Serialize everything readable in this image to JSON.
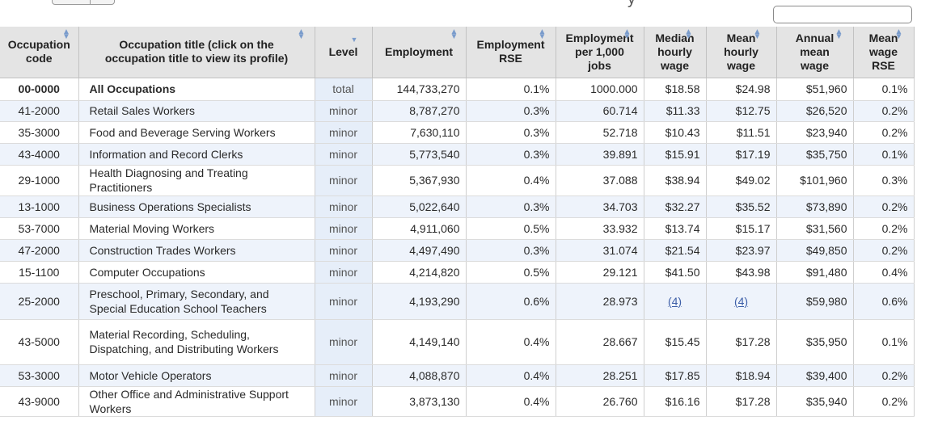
{
  "search": {
    "placeholder": "",
    "value": ""
  },
  "table": {
    "columns": [
      {
        "key": "code",
        "lines": [
          "Occupation",
          "code"
        ],
        "sort": "both"
      },
      {
        "key": "title",
        "lines": [
          "Occupation title (click on the",
          "occupation title to view its profile)"
        ],
        "sort": "both"
      },
      {
        "key": "level",
        "lines": [
          "Level"
        ],
        "sort": "down"
      },
      {
        "key": "employment",
        "lines": [
          "Employment"
        ],
        "sort": "both"
      },
      {
        "key": "employment_rse",
        "lines": [
          "Employment",
          "RSE"
        ],
        "sort": "both"
      },
      {
        "key": "per_1000",
        "lines": [
          "Employment",
          "per 1,000",
          "jobs"
        ],
        "sort": "both"
      },
      {
        "key": "median_hourly",
        "lines": [
          "Median",
          "hourly",
          "wage"
        ],
        "sort": "both"
      },
      {
        "key": "mean_hourly",
        "lines": [
          "Mean",
          "hourly",
          "wage"
        ],
        "sort": "both"
      },
      {
        "key": "annual_mean",
        "lines": [
          "Annual",
          "mean",
          "wage"
        ],
        "sort": "both"
      },
      {
        "key": "mean_rse",
        "lines": [
          "Mean",
          "wage",
          "RSE"
        ],
        "sort": "both"
      }
    ],
    "rows": [
      {
        "code": "00-0000",
        "title": "All Occupations",
        "level": "total",
        "employment": "144,733,270",
        "employment_rse": "0.1%",
        "per_1000": "1000.000",
        "median_hourly": "$18.58",
        "mean_hourly": "$24.98",
        "annual_mean": "$51,960",
        "mean_rse": "0.1%",
        "bold": true
      },
      {
        "code": "41-2000",
        "title": "Retail Sales Workers",
        "level": "minor",
        "employment": "8,787,270",
        "employment_rse": "0.3%",
        "per_1000": "60.714",
        "median_hourly": "$11.33",
        "mean_hourly": "$12.75",
        "annual_mean": "$26,520",
        "mean_rse": "0.2%"
      },
      {
        "code": "35-3000",
        "title": "Food and Beverage Serving Workers",
        "level": "minor",
        "employment": "7,630,110",
        "employment_rse": "0.3%",
        "per_1000": "52.718",
        "median_hourly": "$10.43",
        "mean_hourly": "$11.51",
        "annual_mean": "$23,940",
        "mean_rse": "0.2%"
      },
      {
        "code": "43-4000",
        "title": "Information and Record Clerks",
        "level": "minor",
        "employment": "5,773,540",
        "employment_rse": "0.3%",
        "per_1000": "39.891",
        "median_hourly": "$15.91",
        "mean_hourly": "$17.19",
        "annual_mean": "$35,750",
        "mean_rse": "0.1%"
      },
      {
        "code": "29-1000",
        "title": "Health Diagnosing and Treating Practitioners",
        "level": "minor",
        "employment": "5,367,930",
        "employment_rse": "0.4%",
        "per_1000": "37.088",
        "median_hourly": "$38.94",
        "mean_hourly": "$49.02",
        "annual_mean": "$101,960",
        "mean_rse": "0.3%"
      },
      {
        "code": "13-1000",
        "title": "Business Operations Specialists",
        "level": "minor",
        "employment": "5,022,640",
        "employment_rse": "0.3%",
        "per_1000": "34.703",
        "median_hourly": "$32.27",
        "mean_hourly": "$35.52",
        "annual_mean": "$73,890",
        "mean_rse": "0.2%"
      },
      {
        "code": "53-7000",
        "title": "Material Moving Workers",
        "level": "minor",
        "employment": "4,911,060",
        "employment_rse": "0.5%",
        "per_1000": "33.932",
        "median_hourly": "$13.74",
        "mean_hourly": "$15.17",
        "annual_mean": "$31,560",
        "mean_rse": "0.2%"
      },
      {
        "code": "47-2000",
        "title": "Construction Trades Workers",
        "level": "minor",
        "employment": "4,497,490",
        "employment_rse": "0.3%",
        "per_1000": "31.074",
        "median_hourly": "$21.54",
        "mean_hourly": "$23.97",
        "annual_mean": "$49,850",
        "mean_rse": "0.2%"
      },
      {
        "code": "15-1100",
        "title": "Computer Occupations",
        "level": "minor",
        "employment": "4,214,820",
        "employment_rse": "0.5%",
        "per_1000": "29.121",
        "median_hourly": "$41.50",
        "mean_hourly": "$43.98",
        "annual_mean": "$91,480",
        "mean_rse": "0.4%"
      },
      {
        "code": "25-2000",
        "title": "Preschool, Primary, Secondary, and Special Education School Teachers",
        "level": "minor",
        "employment": "4,193,290",
        "employment_rse": "0.6%",
        "per_1000": "28.973",
        "median_hourly": "(4)",
        "mean_hourly": "(4)",
        "annual_mean": "$59,980",
        "mean_rse": "0.6%",
        "footnote_wages": true
      },
      {
        "code": "43-5000",
        "title": "Material Recording, Scheduling, Dispatching, and Distributing Workers",
        "level": "minor",
        "employment": "4,149,140",
        "employment_rse": "0.4%",
        "per_1000": "28.667",
        "median_hourly": "$15.45",
        "mean_hourly": "$17.28",
        "annual_mean": "$35,950",
        "mean_rse": "0.1%"
      },
      {
        "code": "53-3000",
        "title": "Motor Vehicle Operators",
        "level": "minor",
        "employment": "4,088,870",
        "employment_rse": "0.4%",
        "per_1000": "28.251",
        "median_hourly": "$17.85",
        "mean_hourly": "$18.94",
        "annual_mean": "$39,400",
        "mean_rse": "0.2%"
      },
      {
        "code": "43-9000",
        "title": "Other Office and Administrative Support Workers",
        "level": "minor",
        "employment": "3,873,130",
        "employment_rse": "0.4%",
        "per_1000": "26.760",
        "median_hourly": "$16.16",
        "mean_hourly": "$17.28",
        "annual_mean": "$35,940",
        "mean_rse": "0.2%"
      }
    ]
  }
}
